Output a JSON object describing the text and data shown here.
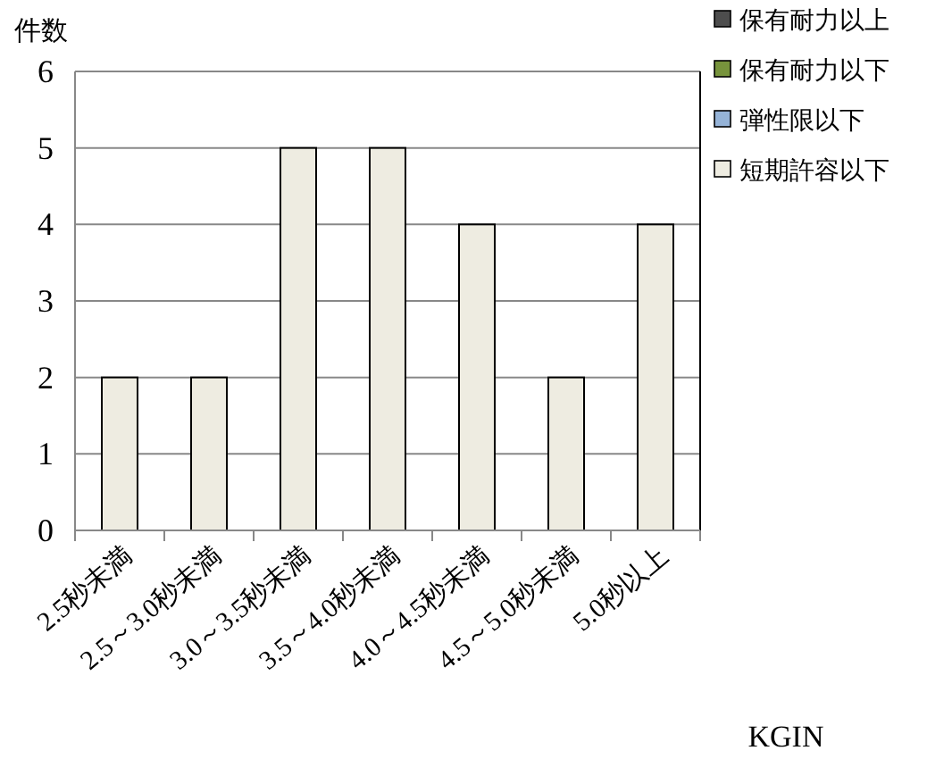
{
  "chart_data": {
    "type": "bar",
    "stacked": true,
    "ylabel": "件数",
    "xlabel": "KGIN",
    "categories": [
      "2.5秒未満",
      "2.5～3.0秒未満",
      "3.0～3.5秒未満",
      "3.5～4.0秒未満",
      "4.0～4.5秒未満",
      "4.5～5.0秒未満",
      "5.0秒以上"
    ],
    "series": [
      {
        "name": "保有耐力以上",
        "color": "#4d4d4d",
        "values": [
          0,
          0,
          0,
          0,
          0,
          0,
          0
        ]
      },
      {
        "name": "保有耐力以下",
        "color": "#77933c",
        "values": [
          0,
          0,
          0,
          0,
          0,
          0,
          0
        ]
      },
      {
        "name": "弾性限以下",
        "color": "#95b3d7",
        "values": [
          0,
          0,
          0,
          0,
          0,
          0,
          0
        ]
      },
      {
        "name": "短期許容以下",
        "color": "#eeece1",
        "values": [
          2,
          2,
          5,
          5,
          4,
          2,
          4
        ]
      }
    ],
    "ylim": [
      0,
      6
    ],
    "yticks": [
      0,
      1,
      2,
      3,
      4,
      5,
      6
    ],
    "grid": "y",
    "legend": "top right"
  }
}
